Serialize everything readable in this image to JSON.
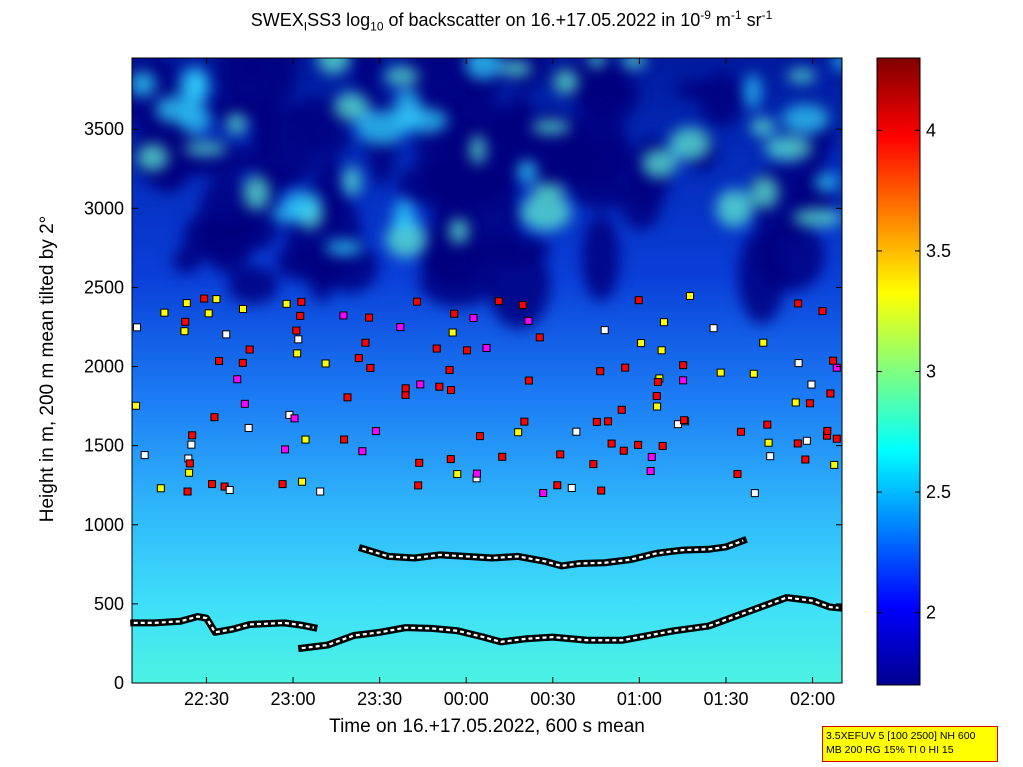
{
  "title": {
    "prefix": "SWEX",
    "sub1": "I",
    "part2": "SS3 log",
    "sub2": "10",
    "part3": " of backscatter on 16.+17.05.2022 in 10",
    "sup1": "-9",
    "part4": " m",
    "sup2": "-1",
    "part5": " sr",
    "sup3": "-1"
  },
  "info_box": {
    "line1": "3.5XEFUV 5 [100 2500] NH 600",
    "line2": "MB 200 RG 15% TI 0 HI 15"
  },
  "chart_data": {
    "type": "heatmap",
    "xlabel": "Time on 16.+17.05.2022, 600 s mean",
    "ylabel": "Height in m, 200 m mean tilted by 2°",
    "x_tick_labels": [
      "22:30",
      "23:00",
      "23:30",
      "00:00",
      "00:30",
      "01:00",
      "01:30",
      "02:00"
    ],
    "x_tick_hours": [
      22.5,
      23.0,
      23.5,
      24.0,
      24.5,
      25.0,
      25.5,
      26.0
    ],
    "xlim_hours": [
      22.07,
      26.17
    ],
    "y_ticks": [
      0,
      500,
      1000,
      1500,
      2000,
      2500,
      3000,
      3500
    ],
    "ylim": [
      0,
      3950
    ],
    "colorbar": {
      "ticks": [
        "2",
        "2.5",
        "3",
        "3.5",
        "4"
      ],
      "tick_values": [
        2,
        2.5,
        3,
        3.5,
        4
      ],
      "range": [
        1.7,
        4.3
      ],
      "colormap": "jet"
    },
    "layer_series": [
      {
        "points": [
          [
            22.08,
            380
          ],
          [
            22.2,
            380
          ],
          [
            22.35,
            390
          ],
          [
            22.45,
            420
          ],
          [
            22.5,
            410
          ],
          [
            22.55,
            320
          ],
          [
            22.65,
            340
          ],
          [
            22.75,
            370
          ],
          [
            22.85,
            375
          ],
          [
            22.95,
            380
          ],
          [
            23.05,
            365
          ],
          [
            23.12,
            350
          ]
        ]
      },
      {
        "points": [
          [
            23.05,
            220
          ],
          [
            23.2,
            240
          ],
          [
            23.35,
            300
          ],
          [
            23.5,
            320
          ],
          [
            23.65,
            350
          ],
          [
            23.8,
            345
          ],
          [
            23.95,
            330
          ],
          [
            24.1,
            290
          ],
          [
            24.2,
            260
          ],
          [
            24.35,
            280
          ],
          [
            24.5,
            290
          ],
          [
            24.7,
            270
          ],
          [
            24.9,
            270
          ],
          [
            25.05,
            300
          ],
          [
            25.2,
            330
          ],
          [
            25.4,
            360
          ],
          [
            25.55,
            420
          ],
          [
            25.7,
            480
          ],
          [
            25.85,
            540
          ],
          [
            26.0,
            520
          ],
          [
            26.1,
            480
          ],
          [
            26.15,
            475
          ]
        ]
      },
      {
        "points": [
          [
            23.4,
            850
          ],
          [
            23.55,
            800
          ],
          [
            23.7,
            790
          ],
          [
            23.85,
            810
          ],
          [
            24.0,
            800
          ],
          [
            24.15,
            790
          ],
          [
            24.3,
            800
          ],
          [
            24.45,
            770
          ],
          [
            24.55,
            740
          ],
          [
            24.65,
            755
          ],
          [
            24.8,
            760
          ],
          [
            24.95,
            780
          ],
          [
            25.1,
            820
          ],
          [
            25.25,
            840
          ],
          [
            25.4,
            845
          ],
          [
            25.5,
            860
          ],
          [
            25.6,
            900
          ]
        ]
      }
    ]
  }
}
